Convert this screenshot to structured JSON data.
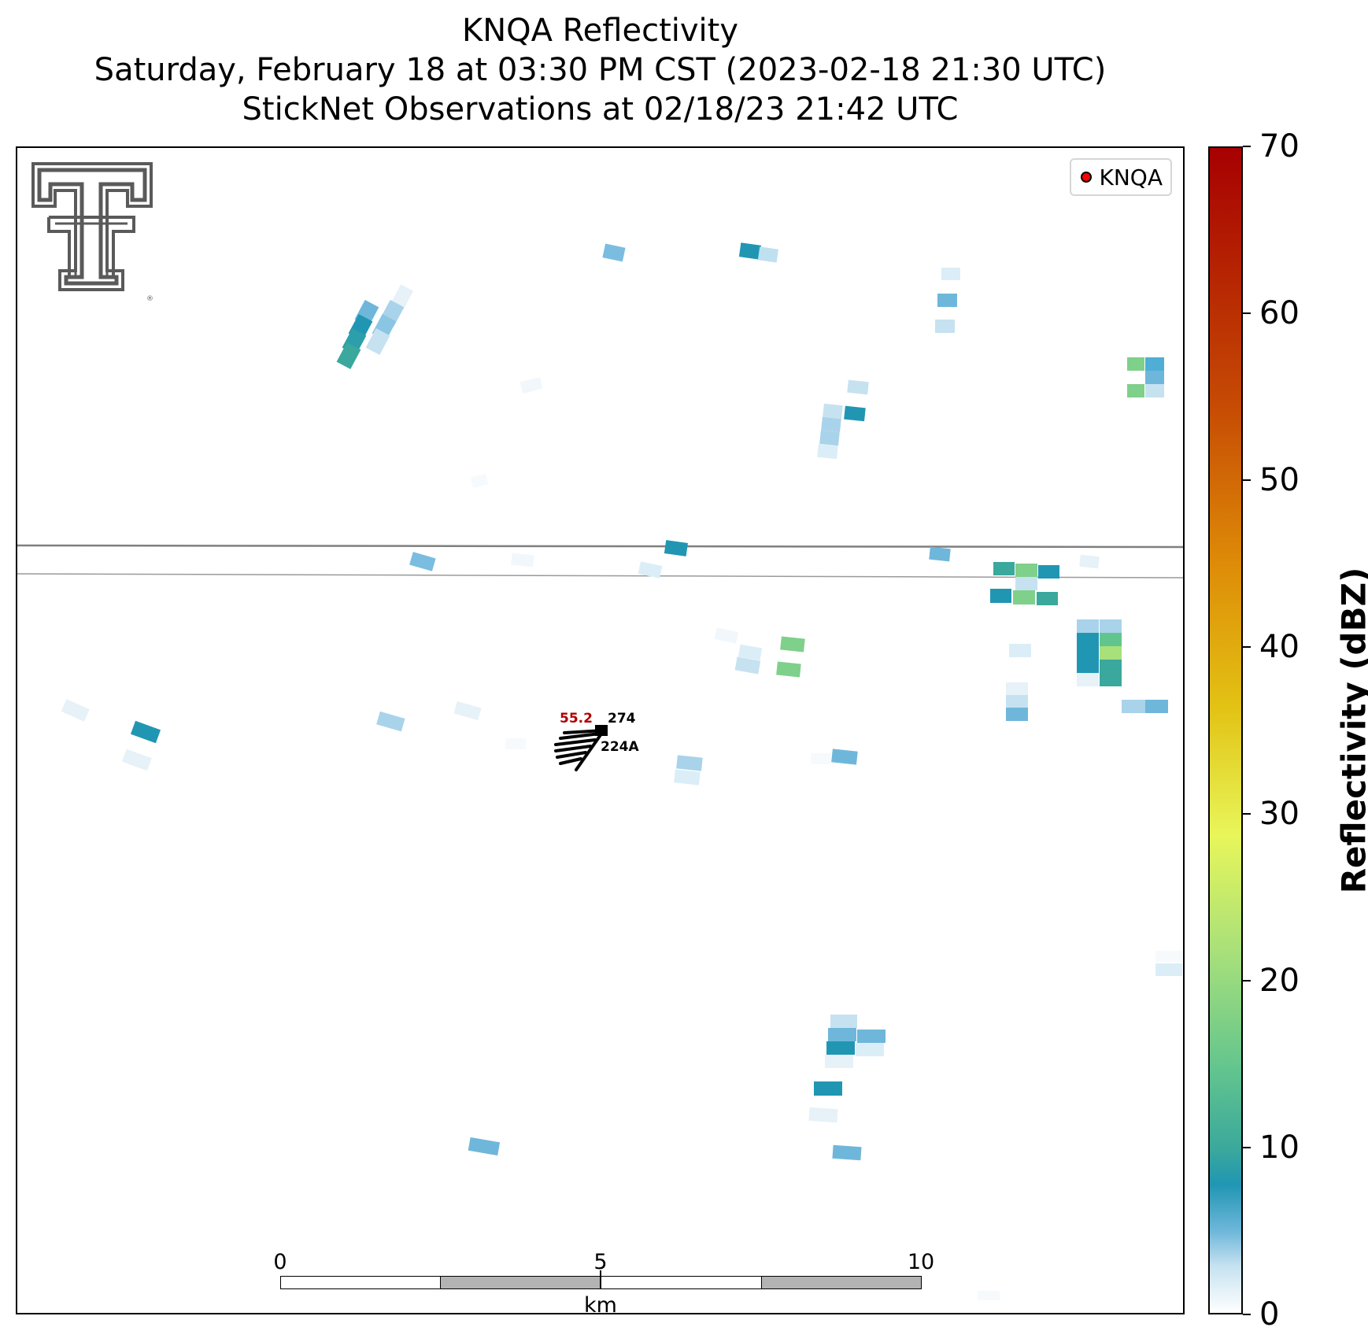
{
  "title": {
    "line1": "KNQA Reflectivity",
    "line2": "Saturday, February 18 at 03:30 PM CST (2023-02-18 21:30 UTC)",
    "line3": "StickNet Observations at 02/18/23 21:42 UTC"
  },
  "legend": {
    "label": "KNQA",
    "marker_color": "#ff0000"
  },
  "station": {
    "value_red": "55.2",
    "value_top": "274",
    "id": "224A",
    "value_color": "#b00000"
  },
  "scale_bar": {
    "ticks": [
      "0",
      "5",
      "10"
    ],
    "unit": "km"
  },
  "colorbar": {
    "label": "Reflectivity (dBZ)",
    "ticks": [
      "0",
      "10",
      "20",
      "30",
      "40",
      "50",
      "60",
      "70"
    ],
    "range": [
      0,
      70
    ]
  },
  "logo": {
    "name": "Texas Tech double-T",
    "color": "#5a5a5a"
  }
}
